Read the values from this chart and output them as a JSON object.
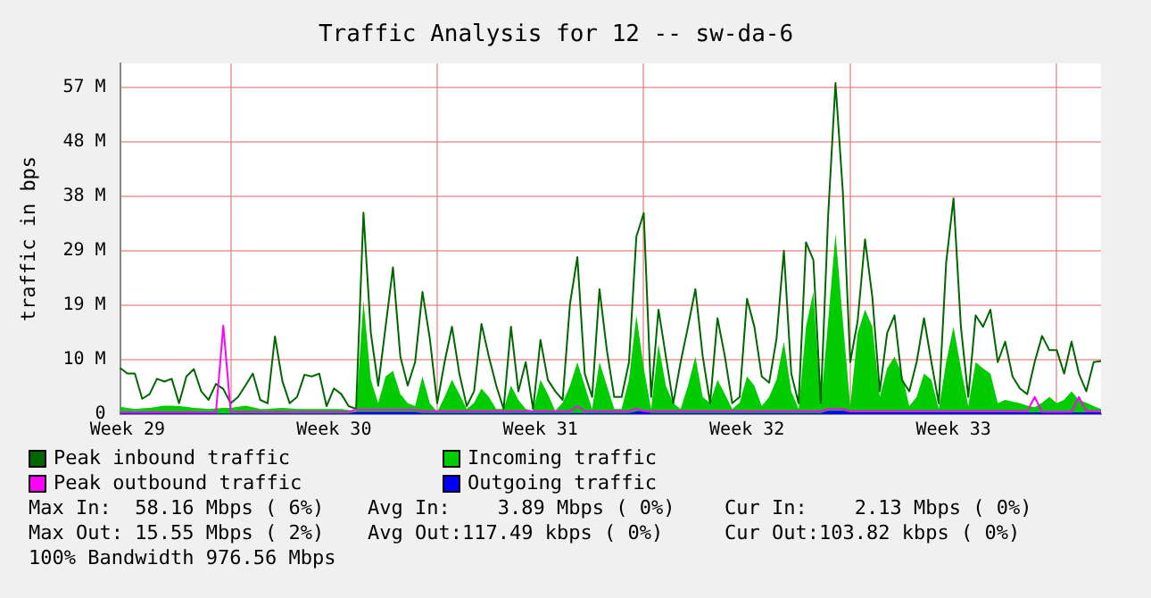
{
  "chart_data": {
    "type": "line",
    "title": "Traffic Analysis for 12 -- sw-da-6",
    "ylabel": "traffic in bps",
    "categories": [
      null,
      "Week 29",
      null,
      null,
      null,
      null,
      null,
      null,
      null,
      null,
      null,
      null,
      null,
      null,
      null,
      null,
      null,
      null,
      null,
      null,
      null,
      null,
      null,
      null,
      null,
      null,
      null,
      null,
      null,
      "Week 30",
      null,
      null,
      null,
      null,
      null,
      null,
      null,
      null,
      null,
      null,
      null,
      null,
      null,
      null,
      null,
      null,
      null,
      null,
      null,
      null,
      null,
      null,
      null,
      null,
      null,
      null,
      null,
      "Week 31",
      null,
      null,
      null,
      null,
      null,
      null,
      null,
      null,
      null,
      null,
      null,
      null,
      null,
      null,
      null,
      null,
      null,
      null,
      null,
      null,
      null,
      null,
      null,
      null,
      null,
      null,
      null,
      "Week 32",
      null,
      null,
      null,
      null,
      null,
      null,
      null,
      null,
      null,
      null,
      null,
      null,
      null,
      null,
      null,
      null,
      null,
      null,
      null,
      null,
      null,
      null,
      null,
      null,
      null,
      null,
      null,
      "Week 33",
      null,
      null,
      null,
      null,
      null,
      null,
      null,
      null,
      null,
      null,
      null,
      null,
      null,
      null,
      null,
      null,
      null,
      null,
      null,
      null
    ],
    "ylim": [
      0,
      61.4
    ],
    "yticks": [
      0,
      {
        "value": 9.54,
        "label": "10 M"
      },
      {
        "value": 19.07,
        "label": "19 M"
      },
      {
        "value": 28.61,
        "label": "29 M"
      },
      {
        "value": 38.15,
        "label": "38 M"
      },
      {
        "value": 47.68,
        "label": "48 M"
      },
      {
        "value": 57.22,
        "label": "57 M"
      }
    ],
    "grid": true,
    "legend": "bottom",
    "series": [
      {
        "name": "Peak inbound traffic",
        "type": "line",
        "color": "#006600",
        "values": [
          8.1,
          7.1,
          7.1,
          2.7,
          3.5,
          6.2,
          5.7,
          6.2,
          1.9,
          6.6,
          7.9,
          4.0,
          2.5,
          5.3,
          4.4,
          1.9,
          3.0,
          5.0,
          7.1,
          2.5,
          1.9,
          13.6,
          5.8,
          1.9,
          3.0,
          6.9,
          6.6,
          7.1,
          1.4,
          4.5,
          3.5,
          1.4,
          0.9,
          35.3,
          14.2,
          5.0,
          15.3,
          25.7,
          10.1,
          5.0,
          9.1,
          21.4,
          13.2,
          1.9,
          9.1,
          15.3,
          7.1,
          1.4,
          4.0,
          15.8,
          10.1,
          5.0,
          0.9,
          15.3,
          4.0,
          9.1,
          0.9,
          13.0,
          6.0,
          4.0,
          2.5,
          19.3,
          27.5,
          7.1,
          3.0,
          21.9,
          11.2,
          3.0,
          3.0,
          9.1,
          31.1,
          35.2,
          3.0,
          18.3,
          10.1,
          1.9,
          9.1,
          15.3,
          21.9,
          10.1,
          1.9,
          16.8,
          10.1,
          1.9,
          3.0,
          20.2,
          15.3,
          6.6,
          5.5,
          13.2,
          28.6,
          7.1,
          1.9,
          30.1,
          27.0,
          1.9,
          34.7,
          58.0,
          38.8,
          9.1,
          16.3,
          30.6,
          20.4,
          4.0,
          14.2,
          17.3,
          6.0,
          4.0,
          9.1,
          16.8,
          9.1,
          1.9,
          26.5,
          37.8,
          15.3,
          3.0,
          17.3,
          15.3,
          18.3,
          9.1,
          12.7,
          6.6,
          4.5,
          3.5,
          9.1,
          13.7,
          11.2,
          11.2,
          7.1,
          12.7,
          7.1,
          4.0,
          9.1,
          9.3
        ]
      },
      {
        "name": "Incoming traffic",
        "type": "area",
        "color": "#00cc00",
        "values": [
          1.3,
          1.1,
          0.9,
          1.0,
          1.1,
          1.3,
          1.5,
          1.5,
          1.4,
          1.3,
          1.1,
          1.0,
          0.9,
          1.0,
          1.1,
          1.1,
          1.3,
          1.5,
          1.2,
          0.9,
          0.9,
          1.0,
          1.1,
          1.0,
          0.9,
          0.9,
          0.9,
          0.9,
          0.9,
          0.9,
          0.9,
          0.7,
          0.5,
          19.9,
          6.0,
          1.9,
          6.6,
          7.6,
          3.5,
          1.9,
          1.4,
          6.6,
          1.9,
          0.4,
          3.0,
          6.0,
          3.5,
          0.9,
          2.0,
          4.5,
          3.0,
          0.9,
          0.9,
          5.0,
          2.5,
          0.9,
          0.6,
          6.0,
          3.5,
          0.6,
          2.0,
          5.0,
          9.1,
          5.0,
          0.9,
          9.1,
          5.0,
          0.9,
          0.9,
          6.0,
          17.3,
          8.1,
          0.9,
          12.2,
          5.0,
          1.9,
          0.9,
          5.0,
          10.1,
          3.0,
          1.9,
          6.0,
          3.5,
          0.9,
          2.0,
          6.6,
          5.0,
          1.4,
          3.0,
          6.0,
          12.7,
          4.0,
          0.9,
          15.3,
          21.4,
          1.4,
          16.3,
          31.6,
          16.3,
          1.4,
          14.2,
          18.3,
          15.3,
          3.0,
          8.0,
          10.1,
          7.1,
          1.4,
          3.0,
          7.1,
          6.0,
          0.9,
          9.1,
          15.3,
          8.1,
          1.4,
          9.1,
          8.0,
          7.1,
          1.9,
          2.5,
          2.2,
          1.9,
          1.5,
          1.2,
          2.0,
          3.0,
          1.9,
          2.5,
          4.0,
          2.5,
          2.0,
          1.4,
          0.9
        ]
      },
      {
        "name": "Peak outbound traffic",
        "type": "line",
        "color": "#ff00ff",
        "values": [
          0.3,
          0.3,
          0.3,
          0.3,
          0.3,
          0.3,
          0.3,
          0.3,
          0.3,
          0.3,
          0.3,
          0.3,
          0.3,
          0.3,
          15.5,
          0.4,
          0.4,
          0.4,
          0.4,
          0.4,
          0.4,
          0.4,
          0.4,
          0.4,
          0.4,
          0.4,
          0.4,
          0.4,
          0.4,
          0.4,
          0.4,
          0.4,
          0.8,
          0.8,
          0.8,
          0.8,
          0.8,
          0.8,
          0.8,
          0.8,
          0.8,
          0.5,
          0.5,
          0.5,
          0.5,
          0.5,
          0.5,
          0.5,
          0.5,
          0.5,
          0.5,
          0.5,
          0.5,
          0.5,
          0.5,
          0.5,
          0.5,
          0.5,
          0.5,
          0.5,
          0.5,
          0.5,
          1.4,
          0.5,
          0.5,
          0.5,
          0.5,
          0.5,
          0.5,
          0.5,
          1.0,
          0.5,
          0.5,
          0.5,
          0.5,
          0.5,
          0.5,
          0.5,
          0.5,
          0.5,
          0.5,
          0.5,
          0.5,
          0.5,
          0.5,
          0.5,
          0.5,
          0.5,
          0.5,
          0.5,
          0.5,
          0.5,
          0.5,
          0.5,
          0.5,
          0.5,
          0.9,
          0.9,
          0.9,
          0.5,
          0.5,
          0.5,
          0.5,
          0.5,
          0.5,
          0.5,
          0.5,
          0.5,
          0.5,
          0.5,
          0.5,
          0.5,
          0.5,
          0.5,
          0.5,
          0.5,
          0.5,
          0.5,
          0.5,
          0.5,
          0.5,
          0.5,
          0.5,
          0.5,
          3.0,
          0.4,
          0.4,
          0.4,
          0.4,
          0.4,
          3.0,
          0.5,
          0.5,
          0.5
        ]
      },
      {
        "name": "Outgoing traffic",
        "type": "area",
        "color": "#0000ff",
        "values": [
          0.1,
          0.1,
          0.1,
          0.1,
          0.1,
          0.1,
          0.1,
          0.1,
          0.1,
          0.1,
          0.1,
          0.1,
          0.1,
          0.1,
          0.1,
          0.1,
          0.1,
          0.1,
          0.1,
          0.1,
          0.1,
          0.1,
          0.1,
          0.1,
          0.1,
          0.1,
          0.1,
          0.1,
          0.1,
          0.1,
          0.1,
          0.1,
          0.4,
          0.4,
          0.4,
          0.4,
          0.4,
          0.4,
          0.4,
          0.4,
          0.4,
          0.2,
          0.2,
          0.2,
          0.2,
          0.2,
          0.2,
          0.2,
          0.2,
          0.2,
          0.2,
          0.2,
          0.2,
          0.2,
          0.2,
          0.2,
          0.2,
          0.2,
          0.2,
          0.2,
          0.2,
          0.2,
          0.2,
          0.2,
          0.2,
          0.2,
          0.2,
          0.2,
          0.2,
          0.2,
          0.5,
          0.5,
          0.2,
          0.2,
          0.2,
          0.2,
          0.2,
          0.2,
          0.2,
          0.2,
          0.2,
          0.2,
          0.2,
          0.2,
          0.2,
          0.2,
          0.2,
          0.2,
          0.2,
          0.2,
          0.2,
          0.2,
          0.2,
          0.2,
          0.2,
          0.2,
          0.6,
          0.6,
          0.6,
          0.3,
          0.3,
          0.3,
          0.3,
          0.3,
          0.3,
          0.3,
          0.3,
          0.3,
          0.3,
          0.3,
          0.3,
          0.3,
          0.3,
          0.3,
          0.3,
          0.3,
          0.3,
          0.3,
          0.3,
          0.3,
          0.3,
          0.3,
          0.3,
          0.3,
          0.3,
          0.3,
          0.3,
          0.3,
          0.3,
          0.3,
          0.3,
          0.3,
          0.3,
          0.3
        ]
      }
    ],
    "annotations": [
      "Max In:  58.16 Mbps ( 6%)",
      "Avg In:    3.89 Mbps ( 0%)",
      "Cur In:    2.13 Mbps ( 0%)",
      "Max Out: 15.55 Mbps ( 2%)",
      "Avg Out:117.49 kbps ( 0%)",
      "Cur Out:103.82 kbps ( 0%)",
      "100% Bandwidth 976.56 Mbps"
    ]
  }
}
